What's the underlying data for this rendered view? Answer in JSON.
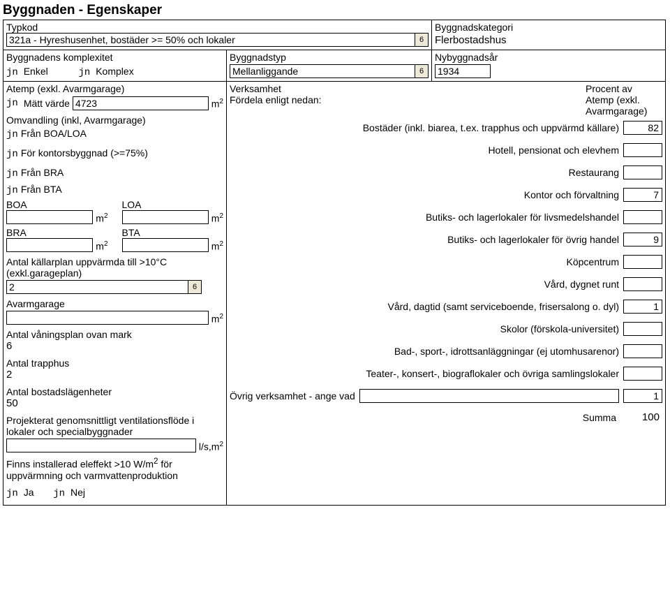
{
  "title": "Byggnaden - Egenskaper",
  "row1": {
    "typkod_label": "Typkod",
    "typkod_value": "321a - Hyreshusenhet, bostäder >= 50% och lokaler",
    "kategori_label": "Byggnadskategori",
    "kategori_value": "Flerbostadshus"
  },
  "row2": {
    "komplex_label": "Byggnadens komplexitet",
    "enkel": "Enkel",
    "komplex": "Komplex",
    "byggnadstyp_label": "Byggnadstyp",
    "byggnadstyp_value": "Mellanliggande",
    "ar_label": "Nybyggnadsår",
    "ar_value": "1934"
  },
  "left": {
    "atemp_label": "Atemp (exkl. Avarmgarage)",
    "matt": "Mätt värde",
    "matt_value": "4723",
    "omv_label": "Omvandling (inkl, Avarmgarage)",
    "fran_boa": "Från BOA/LOA",
    "for_kontor": "För kontorsbyggnad (>=75%)",
    "fran_bra": "Från BRA",
    "fran_bta": "Från BTA",
    "boa": "BOA",
    "loa": "LOA",
    "bra": "BRA",
    "bta": "BTA",
    "kallarplan_label": "Antal källarplan uppvärmda till >10°C (exkl.garageplan)",
    "kallarplan_value": "2",
    "avarmgarage_label": "Avarmgarage",
    "vaningsplan_label": "Antal våningsplan ovan mark",
    "vaningsplan_value": "6",
    "trapphus_label": "Antal trapphus",
    "trapphus_value": "2",
    "lagenheter_label": "Antal bostadslägenheter",
    "lagenheter_value": "50",
    "ventilation_label": "Projekterat genomsnittligt ventilationsflöde i lokaler och specialbyggnader",
    "ventilation_unit": "l/s,m",
    "eleffekt_label_1": "Finns installerad eleffekt >10 W/m",
    "eleffekt_label_2": " för uppvärmning och varmvattenproduktion",
    "ja": "Ja",
    "nej": "Nej"
  },
  "right": {
    "verksamhet_label": "Verksamhet",
    "fordela_label": "Fördela enligt nedan:",
    "procent_label_1": "Procent av",
    "procent_label_2": "Atemp (exkl.",
    "procent_label_3": "Avarmgarage)",
    "items": [
      {
        "label": "Bostäder (inkl. biarea, t.ex. trapphus och uppvärmd källare)",
        "value": "82"
      },
      {
        "label": "Hotell, pensionat och elevhem",
        "value": ""
      },
      {
        "label": "Restaurang",
        "value": ""
      },
      {
        "label": "Kontor och förvaltning",
        "value": "7"
      },
      {
        "label": "Butiks- och lagerlokaler för livsmedelshandel",
        "value": ""
      },
      {
        "label": "Butiks- och lagerlokaler för övrig handel",
        "value": "9"
      },
      {
        "label": "Köpcentrum",
        "value": ""
      },
      {
        "label": "Vård, dygnet runt",
        "value": ""
      },
      {
        "label": "Vård, dagtid (samt serviceboende, frisersalong o. dyl)",
        "value": "1"
      },
      {
        "label": "Skolor (förskola-universitet)",
        "value": ""
      },
      {
        "label": "Bad-, sport-, idrottsanläggningar (ej utomhusarenor)",
        "value": ""
      },
      {
        "label": "Teater-, konsert-, biograflokaler och övriga samlingslokaler",
        "value": ""
      }
    ],
    "ovrig_label": "Övrig verksamhet - ange vad",
    "ovrig_value": "1",
    "summa_label": "Summa",
    "summa_value": "100"
  },
  "dropdown_glyph": "6"
}
